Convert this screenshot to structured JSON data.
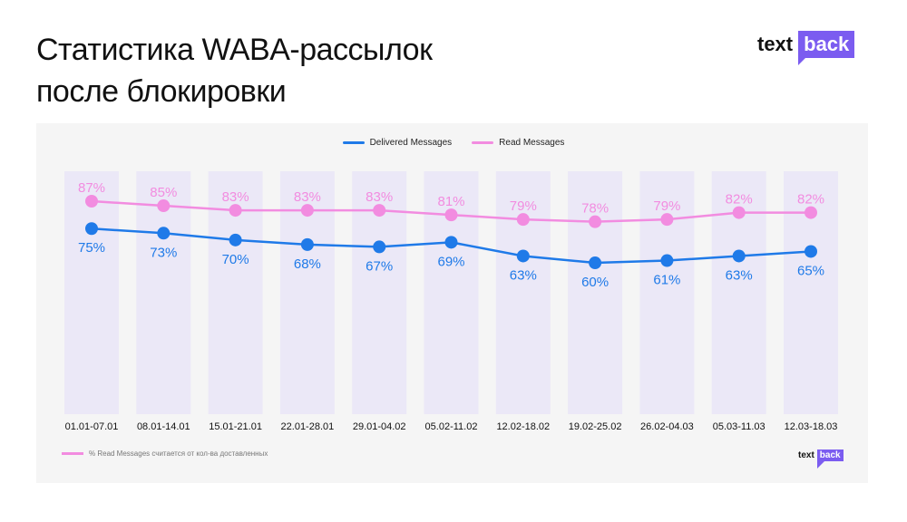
{
  "header": {
    "title_line1": "Статистика WABA-рассылок",
    "title_line2": "после блокировки",
    "logo_text": "text",
    "logo_box": "back"
  },
  "colors": {
    "delivered": "#1f7ae8",
    "read": "#f28ce0",
    "bar": "#ebe8f7",
    "logo": "#7b5cf0"
  },
  "footnote": "% Read Messages считается от кол-ва доставленных",
  "chart_data": {
    "type": "line",
    "categories": [
      "01.01-07.01",
      "08.01-14.01",
      "15.01-21.01",
      "22.01-28.01",
      "29.01-04.02",
      "05.02-11.02",
      "12.02-18.02",
      "19.02-25.02",
      "26.02-04.03",
      "05.03-11.03",
      "12.03-18.03"
    ],
    "series": [
      {
        "name": "Delivered Messages",
        "values": [
          75,
          73,
          70,
          68,
          67,
          69,
          63,
          60,
          61,
          63,
          65
        ],
        "labels": [
          "75%",
          "73%",
          "70%",
          "68%",
          "67%",
          "69%",
          "63%",
          "60%",
          "61%",
          "63%",
          "65%"
        ]
      },
      {
        "name": "Read Messages",
        "values": [
          87,
          85,
          83,
          83,
          83,
          81,
          79,
          78,
          79,
          82,
          82
        ],
        "labels": [
          "87%",
          "85%",
          "83%",
          "83%",
          "83%",
          "81%",
          "79%",
          "78%",
          "79%",
          "82%",
          "82%"
        ]
      }
    ],
    "legend": "top-center",
    "unit": "%"
  }
}
